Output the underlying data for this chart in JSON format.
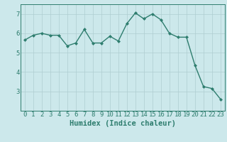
{
  "x": [
    0,
    1,
    2,
    3,
    4,
    5,
    6,
    7,
    8,
    9,
    10,
    11,
    12,
    13,
    14,
    15,
    16,
    17,
    18,
    19,
    20,
    21,
    22,
    23
  ],
  "y": [
    5.65,
    5.9,
    6.0,
    5.9,
    5.9,
    5.35,
    5.5,
    6.2,
    5.5,
    5.5,
    5.85,
    5.6,
    6.5,
    7.05,
    6.75,
    7.0,
    6.7,
    6.0,
    5.8,
    5.8,
    4.35,
    3.25,
    3.15,
    2.6
  ],
  "line_color": "#2e7d6e",
  "marker": "D",
  "marker_size": 2.0,
  "bg_color": "#cce8eb",
  "grid_color": "#aecdd1",
  "xlabel": "Humidex (Indice chaleur)",
  "ylim": [
    2.0,
    7.5
  ],
  "xlim": [
    -0.5,
    23.5
  ],
  "yticks": [
    3,
    4,
    5,
    6,
    7
  ],
  "xticks": [
    0,
    1,
    2,
    3,
    4,
    5,
    6,
    7,
    8,
    9,
    10,
    11,
    12,
    13,
    14,
    15,
    16,
    17,
    18,
    19,
    20,
    21,
    22,
    23
  ],
  "tick_fontsize": 6.5,
  "xlabel_fontsize": 7.5,
  "linewidth": 1.0
}
